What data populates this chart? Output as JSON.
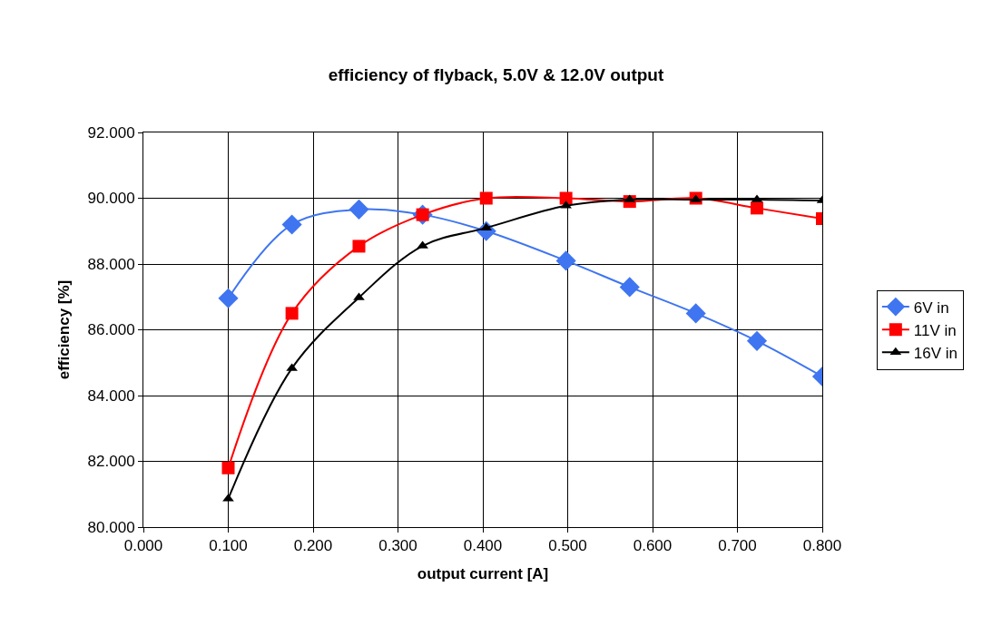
{
  "chart_data": {
    "type": "line",
    "title": "efficiency of flyback, 5.0V & 12.0V output",
    "xlabel": "output current [A]",
    "ylabel": "efficiency [%]",
    "x": [
      0.1,
      0.175,
      0.254,
      0.329,
      0.404,
      0.498,
      0.573,
      0.651,
      0.723,
      0.8
    ],
    "series": [
      {
        "name": "6V in",
        "color": "#3f75f0",
        "marker": "diamond",
        "values": [
          86.96,
          89.2,
          89.66,
          89.5,
          89.0,
          88.1,
          87.3,
          86.5,
          85.66,
          84.58
        ]
      },
      {
        "name": "11V in",
        "color": "#ff0000",
        "marker": "square",
        "values": [
          81.8,
          86.5,
          88.54,
          89.5,
          90.0,
          90.0,
          89.9,
          90.0,
          89.7,
          89.38
        ]
      },
      {
        "name": "16V in",
        "color": "#000000",
        "marker": "triangle",
        "values": [
          80.86,
          84.83,
          86.98,
          88.55,
          89.1,
          89.77,
          89.96,
          89.96,
          89.96,
          89.93
        ]
      }
    ],
    "xlim": [
      0,
      0.8
    ],
    "ylim": [
      80,
      92
    ],
    "xticks": [
      {
        "value": 0,
        "label": "0.000"
      },
      {
        "value": 0.1,
        "label": "0.100"
      },
      {
        "value": 0.2,
        "label": "0.200"
      },
      {
        "value": 0.3,
        "label": "0.300"
      },
      {
        "value": 0.4,
        "label": "0.400"
      },
      {
        "value": 0.5,
        "label": "0.500"
      },
      {
        "value": 0.6,
        "label": "0.600"
      },
      {
        "value": 0.7,
        "label": "0.700"
      },
      {
        "value": 0.8,
        "label": "0.800"
      }
    ],
    "yticks": [
      {
        "value": 80,
        "label": "80.000"
      },
      {
        "value": 82,
        "label": "82.000"
      },
      {
        "value": 84,
        "label": "84.000"
      },
      {
        "value": 86,
        "label": "86.000"
      },
      {
        "value": 88,
        "label": "88.000"
      },
      {
        "value": 90,
        "label": "90.000"
      },
      {
        "value": 92,
        "label": "92.000"
      }
    ],
    "grid": true,
    "legend": "right",
    "line_style": "solid"
  }
}
